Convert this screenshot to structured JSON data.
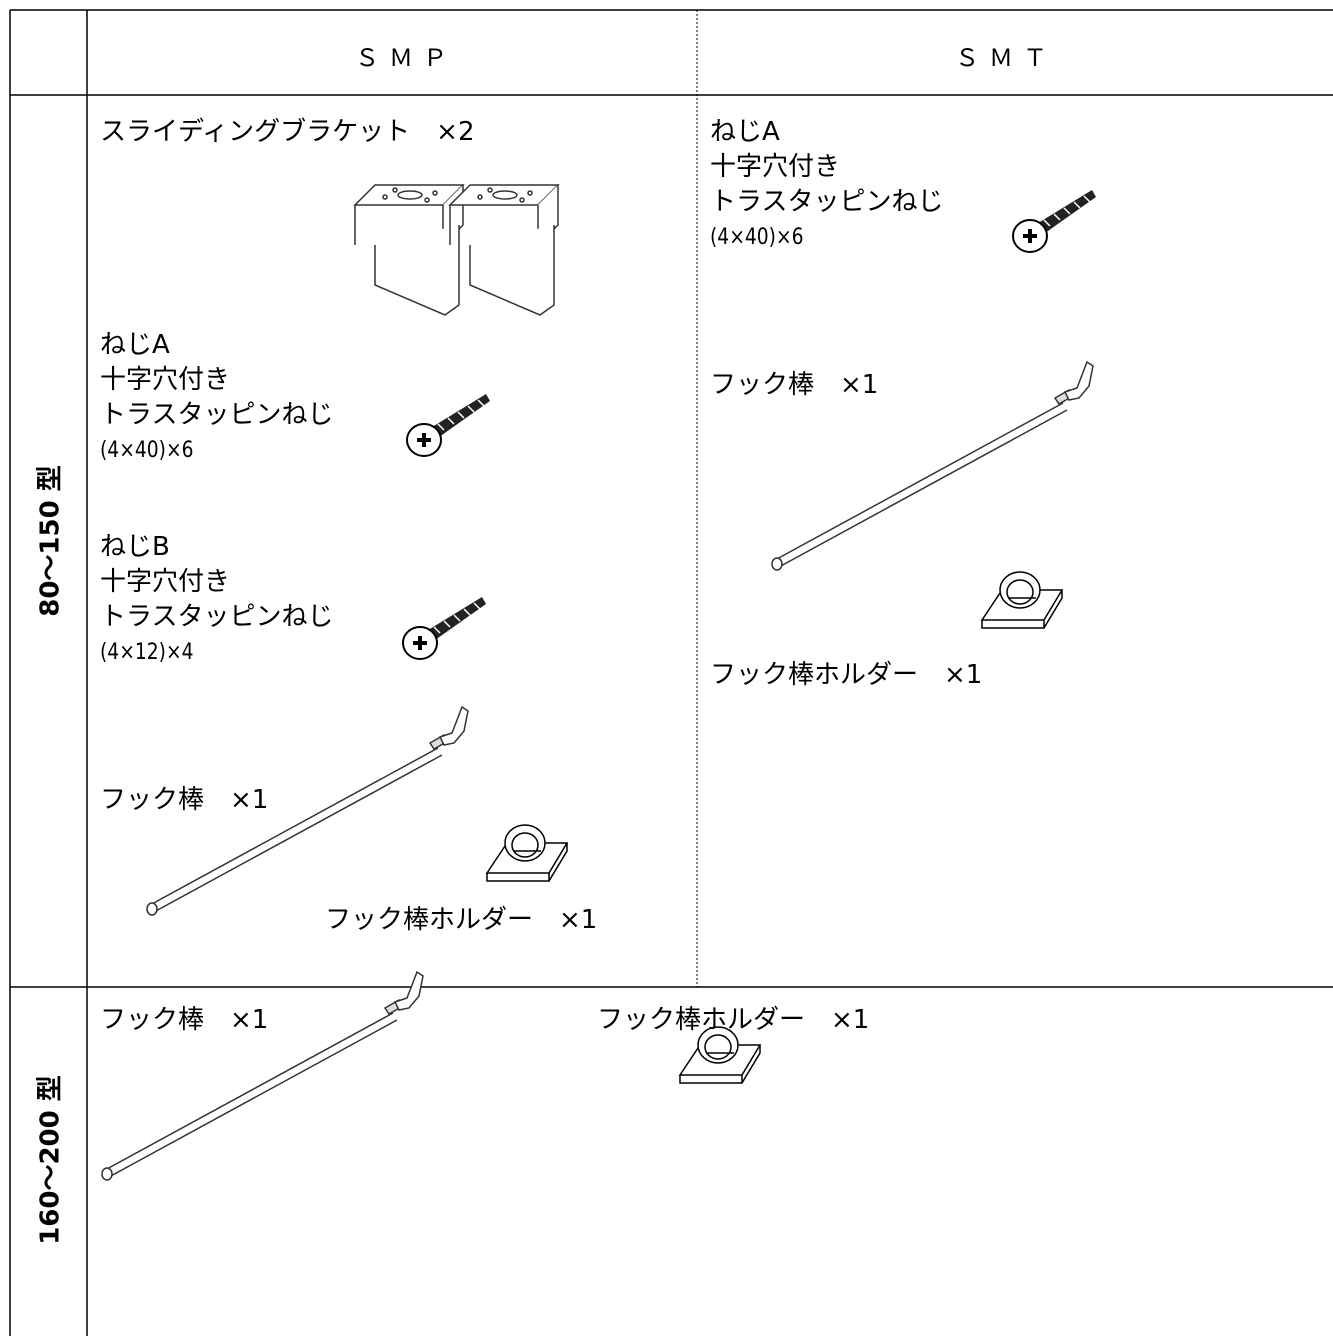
{
  "header": {
    "columns": [
      "ＳＭＰ",
      "ＳＭＴ"
    ]
  },
  "rows": [
    {
      "label": "80～150 型",
      "cells": [
        {
          "items": [
            {
              "lines": [
                "スライディングブラケット　×2"
              ]
            },
            {
              "lines": [
                "ねじA",
                "十字穴付き",
                "トラスタッピンねじ",
                "(4×40)×6"
              ]
            },
            {
              "lines": [
                "ねじB",
                "十字穴付き",
                "トラスタッピンねじ",
                "(4×12)×4"
              ]
            },
            {
              "lines": [
                "フック棒　×1"
              ]
            },
            {
              "lines": [
                "フック棒ホルダー　×1"
              ]
            }
          ]
        },
        {
          "items": [
            {
              "lines": [
                "ねじA",
                "十字穴付き",
                "トラスタッピンねじ",
                "(4×40)×6"
              ]
            },
            {
              "lines": [
                "フック棒　×1"
              ]
            },
            {
              "lines": [
                "フック棒ホルダー　×1"
              ]
            }
          ]
        }
      ]
    },
    {
      "label": "160～200 型",
      "cells": [
        {
          "items": [
            {
              "lines": [
                "フック棒　×1"
              ]
            },
            {
              "lines": [
                "フック棒ホルダー　×1"
              ]
            }
          ]
        }
      ]
    }
  ]
}
